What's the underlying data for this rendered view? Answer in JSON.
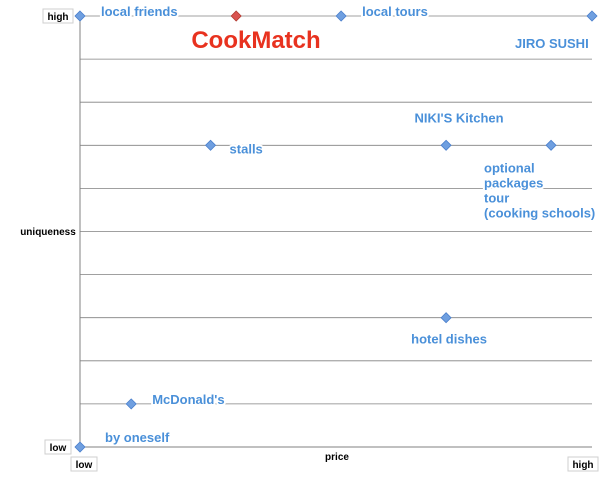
{
  "chart_data": {
    "type": "scatter",
    "title": "",
    "brand": "CookMatch",
    "xlabel": "price",
    "ylabel": "uniqueness",
    "xlim": [
      0,
      10
    ],
    "ylim": [
      0,
      10
    ],
    "x_ticks": {
      "low": "low",
      "high": "high"
    },
    "y_ticks": {
      "low": "low",
      "high": "high"
    },
    "grid": true,
    "colors": {
      "point": "#6f9fe0",
      "brand_point": "#d9534f",
      "label": "#4a90d9",
      "grid": "#808080",
      "brand": "#e8321f"
    },
    "points": [
      {
        "id": "local-friends",
        "x": 0.0,
        "y": 10.0,
        "label": [
          "local friends"
        ],
        "label_anchor": "right"
      },
      {
        "id": "cookmatch",
        "x": 3.05,
        "y": 10.0,
        "label": [],
        "brand": true
      },
      {
        "id": "local-tours",
        "x": 5.1,
        "y": 10.0,
        "label": [
          "local tours"
        ],
        "label_anchor": "right"
      },
      {
        "id": "jiro-sushi",
        "x": 10.0,
        "y": 10.0,
        "label": [
          "JIRO SUSHI"
        ],
        "label_anchor": "below-left"
      },
      {
        "id": "stalls",
        "x": 2.55,
        "y": 7.0,
        "label": [
          "stalls"
        ],
        "label_anchor": "right-low"
      },
      {
        "id": "nikis-kitchen",
        "x": 7.15,
        "y": 7.0,
        "label": [
          "NIKI'S Kitchen"
        ],
        "label_anchor": "above"
      },
      {
        "id": "optional-packages",
        "x": 9.2,
        "y": 7.0,
        "label": [
          "optional",
          "packages",
          "tour",
          "(cooking schools)"
        ],
        "label_anchor": "below-left"
      },
      {
        "id": "hotel-dishes",
        "x": 7.15,
        "y": 3.0,
        "label": [
          "hotel dishes"
        ],
        "label_anchor": "below"
      },
      {
        "id": "mcdonalds",
        "x": 1.0,
        "y": 1.0,
        "label": [
          "McDonald's"
        ],
        "label_anchor": "right"
      },
      {
        "id": "by-oneself",
        "x": 0.0,
        "y": 0.0,
        "label": [
          "by oneself"
        ],
        "label_anchor": "right-up"
      }
    ]
  }
}
